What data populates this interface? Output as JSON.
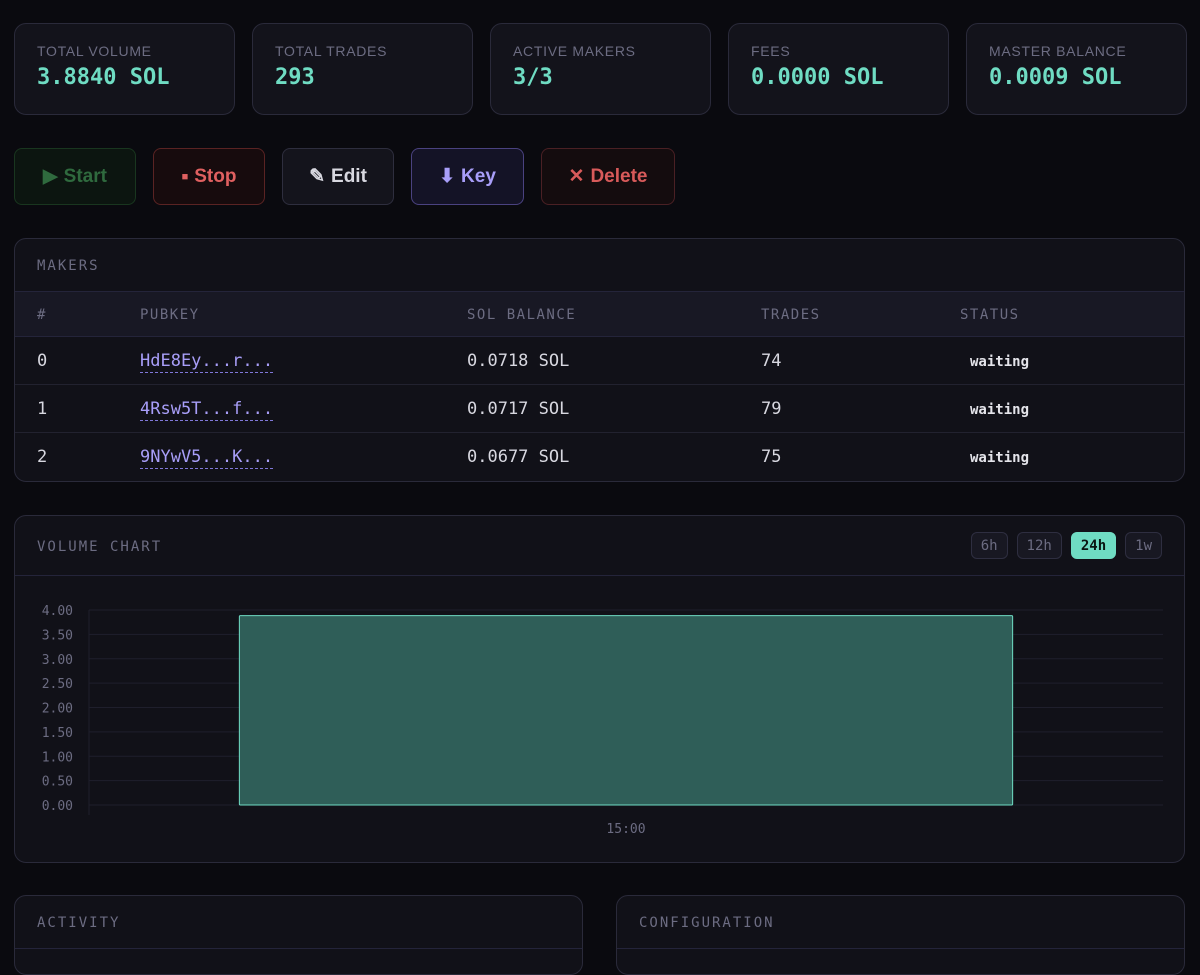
{
  "stats": [
    {
      "label": "TOTAL VOLUME",
      "value": "3.8840 SOL"
    },
    {
      "label": "TOTAL TRADES",
      "value": "293"
    },
    {
      "label": "ACTIVE MAKERS",
      "value": "3/3"
    },
    {
      "label": "FEES",
      "value": "0.0000 SOL"
    },
    {
      "label": "MASTER BALANCE",
      "value": "0.0009 SOL"
    }
  ],
  "actions": {
    "start": {
      "icon": "play-icon",
      "glyph": "▶",
      "label": "Start"
    },
    "stop": {
      "icon": "stop-icon",
      "glyph": "■",
      "label": "Stop"
    },
    "edit": {
      "icon": "pencil-icon",
      "glyph": "✎",
      "label": "Edit"
    },
    "key": {
      "icon": "download-icon",
      "glyph": "⬇",
      "label": "Key"
    },
    "delete": {
      "icon": "close-icon",
      "glyph": "✕",
      "label": "Delete"
    }
  },
  "makers": {
    "title": "MAKERS",
    "columns": [
      "#",
      "PUBKEY",
      "SOL BALANCE",
      "TRADES",
      "STATUS"
    ],
    "rows": [
      {
        "index": "0",
        "pubkey": "HdE8Ey...r...",
        "balance": "0.0718 SOL",
        "trades": "74",
        "status": "waiting"
      },
      {
        "index": "1",
        "pubkey": "4Rsw5T...f...",
        "balance": "0.0717 SOL",
        "trades": "79",
        "status": "waiting"
      },
      {
        "index": "2",
        "pubkey": "9NYwV5...K...",
        "balance": "0.0677 SOL",
        "trades": "75",
        "status": "waiting"
      }
    ]
  },
  "volume_chart": {
    "title": "VOLUME CHART",
    "ranges": [
      "6h",
      "12h",
      "24h",
      "1w"
    ],
    "active_range": "24h"
  },
  "chart_data": {
    "type": "bar",
    "categories": [
      "15:00"
    ],
    "values": [
      3.884
    ],
    "ylim": [
      0,
      4
    ],
    "yticks": [
      "0.00",
      "0.50",
      "1.00",
      "1.50",
      "2.00",
      "2.50",
      "3.00",
      "3.50",
      "4.00"
    ],
    "grid": true,
    "bar_color": "#2f5e58",
    "bar_stroke": "#6fdcc3"
  },
  "activity": {
    "title": "ACTIVITY"
  },
  "configuration": {
    "title": "CONFIGURATION"
  },
  "colors": {
    "accent": "#6fdcc3",
    "key": "#a89ef8",
    "danger": "#e06060"
  }
}
